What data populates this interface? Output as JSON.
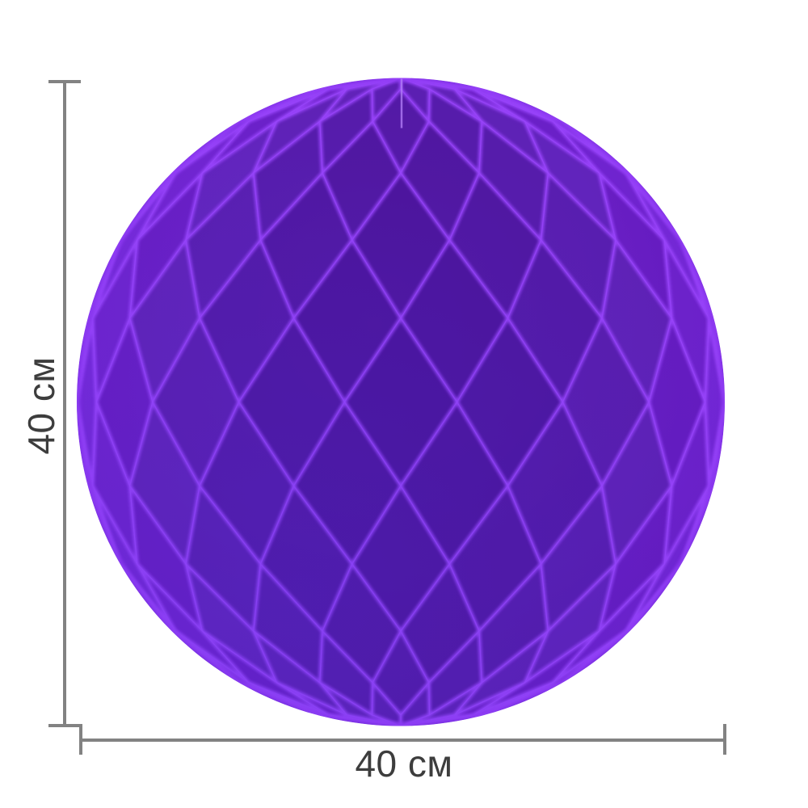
{
  "figure": {
    "type": "product-photo-with-dimensions",
    "subject": "purple honeycomb paper ball",
    "height_label": "40 см",
    "width_label": "40 см"
  },
  "colors": {
    "background": "#ffffff",
    "dimension_line": "#828282",
    "label_text": "#3d3d3d",
    "ball_base": "#7b2ddf",
    "ball_base_light": "#8938f0",
    "ball_base_deep": "#6f24d0",
    "ball_dark_cell": "#420f8e",
    "ball_fold_bright": "#9a45fb",
    "ball_seam": "#b07cf6",
    "ball_blue_tint": "#4d35e0"
  }
}
